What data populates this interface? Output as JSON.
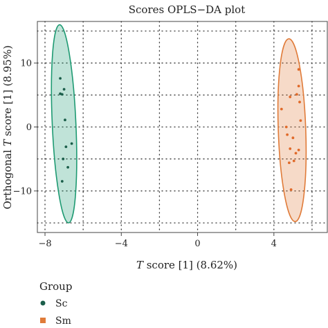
{
  "chart_data": {
    "type": "scatter",
    "title": "Scores OPLS−DA plot",
    "xlabel_prefix": "T",
    "xlabel_suffix": " score [1] (8.62%)",
    "ylabel_prefix": "Orthogonal ",
    "ylabel_italic": "T",
    "ylabel_suffix": " score [1] (8.95%)",
    "xlim": [
      -8.4,
      6.8
    ],
    "ylim": [
      -16.5,
      16.5
    ],
    "x_ticks": [
      -8,
      -4,
      0,
      4
    ],
    "x_tick_labels": [
      "−8",
      "−4",
      "0",
      "4"
    ],
    "y_ticks": [
      10,
      0,
      -10
    ],
    "y_tick_labels": [
      "10",
      "0",
      "−10"
    ],
    "grid": true,
    "legend": {
      "title": "Group",
      "placement": "bottom-left"
    },
    "series": [
      {
        "name": "Sc",
        "color": "#1e9a72",
        "marker_color": "#1b5e4a",
        "ellipse": {
          "cx": -7.0,
          "cy": 0.5,
          "rx": 0.62,
          "ry": 15.5,
          "angle_deg": -2.6
        },
        "points": [
          {
            "x": -7.2,
            "y": 7.6
          },
          {
            "x": -7.0,
            "y": 5.9
          },
          {
            "x": -7.2,
            "y": 5.2
          },
          {
            "x": -7.1,
            "y": 5.1
          },
          {
            "x": -6.95,
            "y": 1.1
          },
          {
            "x": -6.6,
            "y": -2.6
          },
          {
            "x": -6.9,
            "y": -3.1
          },
          {
            "x": -7.05,
            "y": -5.0
          },
          {
            "x": -6.8,
            "y": -6.3
          },
          {
            "x": -7.1,
            "y": -8.5
          }
        ]
      },
      {
        "name": "Sm",
        "color": "#e07b39",
        "marker_color": "#e06a2a",
        "ellipse": {
          "cx": 4.95,
          "cy": -0.5,
          "rx": 0.72,
          "ry": 14.3,
          "angle_deg": -2.0
        },
        "points": [
          {
            "x": 5.3,
            "y": 9.0
          },
          {
            "x": 5.3,
            "y": 6.4
          },
          {
            "x": 5.2,
            "y": 5.1
          },
          {
            "x": 4.85,
            "y": 4.7
          },
          {
            "x": 5.35,
            "y": 3.9
          },
          {
            "x": 4.4,
            "y": 2.8
          },
          {
            "x": 5.4,
            "y": 1.0
          },
          {
            "x": 4.65,
            "y": 0.0
          },
          {
            "x": 4.7,
            "y": -1.2
          },
          {
            "x": 5.0,
            "y": -1.7
          },
          {
            "x": 4.85,
            "y": -3.4
          },
          {
            "x": 5.3,
            "y": -3.6
          },
          {
            "x": 5.15,
            "y": -4.1
          },
          {
            "x": 4.8,
            "y": -5.6
          },
          {
            "x": 5.05,
            "y": -5.3
          },
          {
            "x": 4.9,
            "y": -9.8
          }
        ]
      }
    ]
  }
}
